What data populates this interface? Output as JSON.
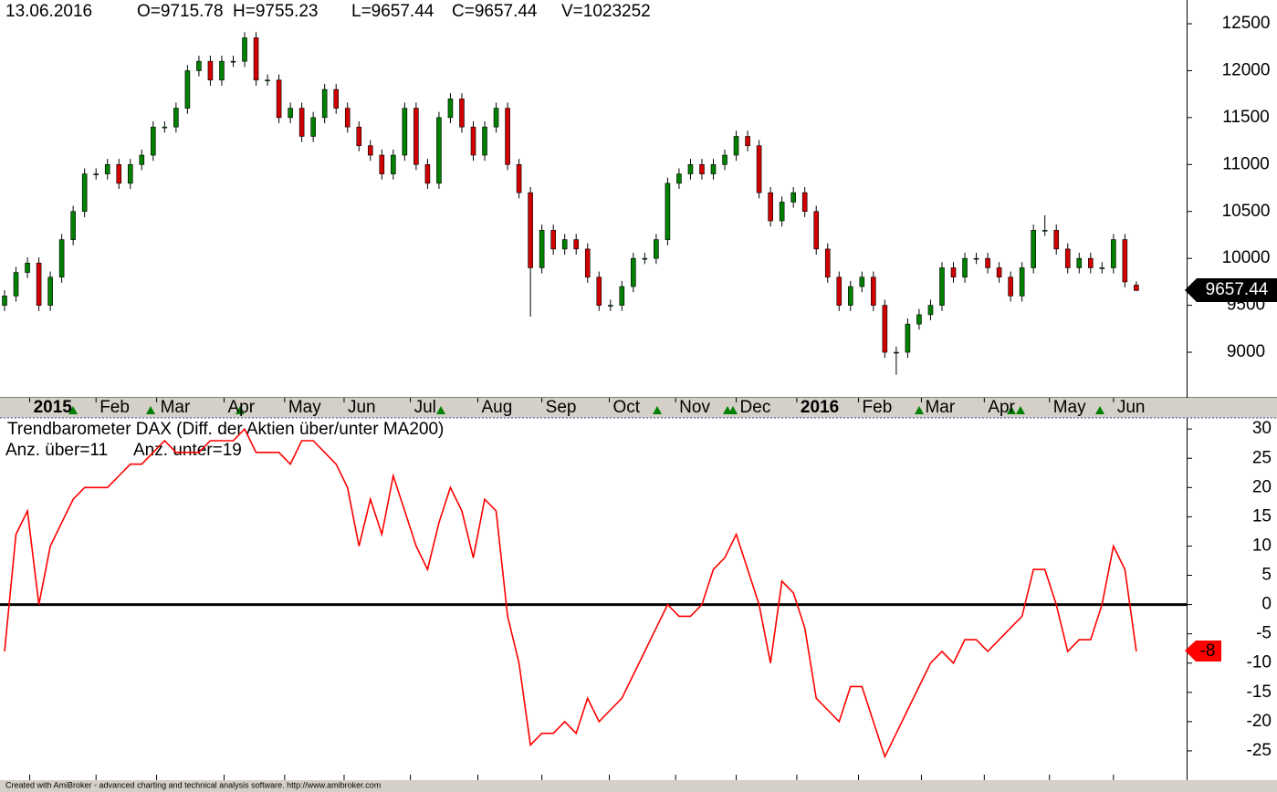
{
  "chart_data": [
    {
      "type": "candlestick",
      "info": [
        "13.06.2016",
        "O=9715.78",
        "H=9755.23",
        "L=9657.44",
        "C=9657.44",
        "V=1023252"
      ],
      "open": [
        9500,
        9600,
        9850,
        9950,
        9500,
        9800,
        10200,
        10500,
        10900,
        10900,
        11000,
        10800,
        11000,
        11100,
        11400,
        11400,
        11600,
        12000,
        12100,
        11900,
        12100,
        12100,
        12350,
        11900,
        11900,
        11500,
        11600,
        11300,
        11500,
        11800,
        11600,
        11400,
        11200,
        11100,
        10900,
        11100,
        11600,
        11000,
        10800,
        11500,
        11700,
        11400,
        11100,
        11400,
        11600,
        11000,
        10700,
        9900,
        10300,
        10100,
        10200,
        10100,
        9800,
        9500,
        9500,
        9700,
        10000,
        10000,
        10200,
        10800,
        10900,
        11000,
        10900,
        11000,
        11100,
        11300,
        11200,
        10700,
        10400,
        10600,
        10700,
        10500,
        10100,
        9800,
        9500,
        9700,
        9800,
        9500,
        9000,
        9000,
        9300,
        9400,
        9500,
        9900,
        9800,
        10000,
        10000,
        9900,
        9800,
        9600,
        9900,
        10300,
        10300,
        10100,
        9900,
        10000,
        9900,
        9900,
        10200,
        9715.78
      ],
      "high": [
        9660,
        9910,
        10010,
        10010,
        9860,
        10260,
        10560,
        10960,
        10960,
        11060,
        11060,
        11060,
        11160,
        11460,
        11460,
        11660,
        12060,
        12160,
        12160,
        12160,
        12160,
        12410,
        12410,
        11960,
        11960,
        11660,
        11660,
        11560,
        11860,
        11860,
        11660,
        11460,
        11260,
        11160,
        11160,
        11660,
        11660,
        11060,
        11560,
        11760,
        11760,
        11460,
        11460,
        11660,
        11660,
        11060,
        10760,
        10360,
        10360,
        10260,
        10260,
        10160,
        9860,
        9560,
        9760,
        10060,
        10060,
        10260,
        10860,
        10960,
        11060,
        11060,
        11060,
        11160,
        11360,
        11360,
        11260,
        10760,
        10660,
        10760,
        10760,
        10560,
        10160,
        9860,
        9760,
        9860,
        9860,
        9560,
        9060,
        9360,
        9460,
        9560,
        9960,
        9960,
        10060,
        10060,
        10060,
        9960,
        9860,
        9960,
        10360,
        10460,
        10360,
        10160,
        10060,
        10060,
        9960,
        10260,
        10260,
        9755.23
      ],
      "low": [
        9440,
        9540,
        9790,
        9440,
        9440,
        9740,
        10140,
        10440,
        10840,
        10840,
        10740,
        10740,
        10940,
        11040,
        11340,
        11340,
        11540,
        11940,
        11840,
        11840,
        12040,
        12040,
        11840,
        11840,
        11440,
        11440,
        11240,
        11240,
        11440,
        11540,
        11340,
        11140,
        11040,
        10840,
        10840,
        11040,
        10940,
        10740,
        10740,
        11440,
        11340,
        11040,
        11040,
        11340,
        10940,
        10640,
        9380,
        9840,
        10040,
        10040,
        10040,
        9740,
        9440,
        9440,
        9440,
        9640,
        9940,
        9940,
        10140,
        10740,
        10840,
        10840,
        10840,
        10940,
        11040,
        11140,
        10640,
        10340,
        10340,
        10540,
        10440,
        10040,
        9740,
        9440,
        9440,
        9640,
        9440,
        8940,
        8760,
        8940,
        9240,
        9340,
        9440,
        9740,
        9740,
        9940,
        9840,
        9740,
        9540,
        9540,
        9840,
        10240,
        10040,
        9840,
        9840,
        9840,
        9840,
        9840,
        9690,
        9657.44
      ],
      "close": [
        9600,
        9850,
        9950,
        9500,
        9800,
        10200,
        10500,
        10900,
        10900,
        11000,
        10800,
        11000,
        11100,
        11400,
        11400,
        11600,
        12000,
        12100,
        11900,
        12100,
        12100,
        12350,
        11900,
        11900,
        11500,
        11600,
        11300,
        11500,
        11800,
        11600,
        11400,
        11200,
        11100,
        10900,
        11100,
        11600,
        11000,
        10800,
        11500,
        11700,
        11400,
        11100,
        11400,
        11600,
        11000,
        10700,
        9900,
        10300,
        10100,
        10200,
        10100,
        9800,
        9500,
        9500,
        9700,
        10000,
        10000,
        10200,
        10800,
        10900,
        11000,
        10900,
        11000,
        11100,
        11300,
        11200,
        10700,
        10400,
        10600,
        10700,
        10500,
        10100,
        9800,
        9500,
        9700,
        9800,
        9500,
        9000,
        9000,
        9300,
        9400,
        9500,
        9900,
        9800,
        10000,
        10000,
        9900,
        9800,
        9600,
        9900,
        10300,
        10300,
        10100,
        9900,
        10000,
        9900,
        9900,
        10200,
        9750,
        9657.44
      ],
      "up_color": "#008000",
      "down_color": "#d00000",
      "xlim": [
        -0.4,
        103.4
      ],
      "ylim": [
        8524,
        12753
      ],
      "yticks": [
        9000,
        9500,
        10000,
        10500,
        11000,
        11500,
        12000,
        12500
      ],
      "xticks": [
        {
          "value": 2.2,
          "label": "2015"
        },
        {
          "value": 8.0,
          "label": "Feb"
        },
        {
          "value": 13.3,
          "label": "Mar"
        },
        {
          "value": 19.2,
          "label": "Apr"
        },
        {
          "value": 24.5,
          "label": "May"
        },
        {
          "value": 29.7,
          "label": "Jun"
        },
        {
          "value": 35.5,
          "label": "Jul"
        },
        {
          "value": 41.4,
          "label": "Aug"
        },
        {
          "value": 47.0,
          "label": "Sep"
        },
        {
          "value": 52.9,
          "label": "Oct"
        },
        {
          "value": 58.7,
          "label": "Nov"
        },
        {
          "value": 64.0,
          "label": "Dec"
        },
        {
          "value": 69.3,
          "label": "2016"
        },
        {
          "value": 74.7,
          "label": "Feb"
        },
        {
          "value": 80.2,
          "label": "Mar"
        },
        {
          "value": 85.7,
          "label": "Apr"
        },
        {
          "value": 91.4,
          "label": "May"
        },
        {
          "value": 97.0,
          "label": "Jun"
        }
      ]
    },
    {
      "type": "line",
      "title": "Trendbarometer DAX   (Diff. der Aktien über/unter MA200)",
      "subtitle": [
        "Anz. über=11",
        "Anz. unter=19"
      ],
      "values": [
        -8,
        12,
        16,
        0,
        10,
        14,
        18,
        20,
        20,
        20,
        22,
        24,
        24,
        26,
        28,
        26,
        26,
        26,
        28,
        28,
        28,
        30,
        26,
        26,
        26,
        24,
        28,
        28,
        26,
        24,
        20,
        10,
        18,
        12,
        22,
        16,
        10,
        6,
        14,
        20,
        16,
        8,
        18,
        16,
        -2,
        -10,
        -24,
        -22,
        -22,
        -20,
        -22,
        -16,
        -20,
        -18,
        -16,
        -12,
        -8,
        -4,
        0,
        -2,
        -2,
        0,
        6,
        8,
        12,
        6,
        0,
        -10,
        4,
        2,
        -4,
        -16,
        -18,
        -20,
        -14,
        -14,
        -20,
        -26,
        -22,
        -18,
        -14,
        -10,
        -8,
        -10,
        -6,
        -6,
        -8,
        -6,
        -4,
        -2,
        6,
        6,
        0,
        -8,
        -6,
        -6,
        0,
        10,
        6,
        -8
      ],
      "color": "#ff0000",
      "xlim": [
        -0.4,
        103.4
      ],
      "ylim": [
        -30,
        31.9
      ],
      "yticks": [
        30,
        25,
        20,
        15,
        10,
        5,
        0,
        -5,
        -10,
        -15,
        -20,
        -25
      ],
      "zero_line": 0
    }
  ],
  "footer": "Created with AmiBroker - advanced charting and technical analysis software. http://www.amibroker.com"
}
